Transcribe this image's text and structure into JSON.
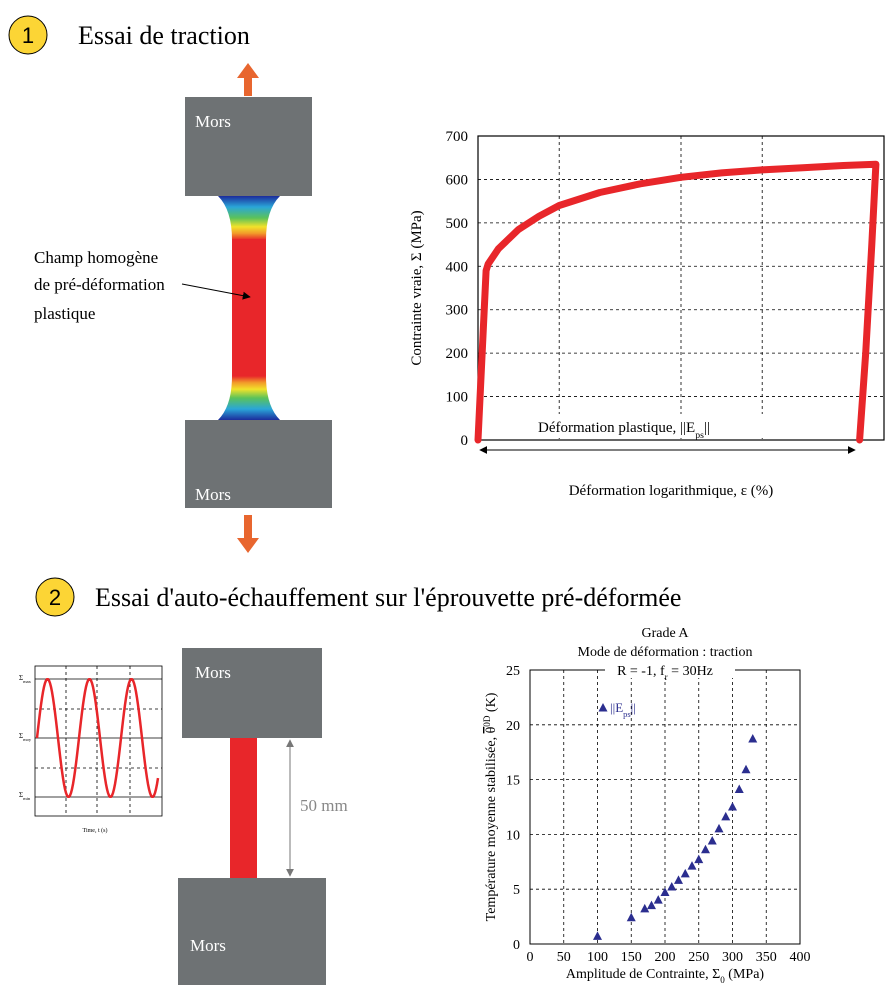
{
  "steps": [
    {
      "number": "1",
      "title": "Essai de traction"
    },
    {
      "number": "2",
      "title": "Essai d'auto-échauffement sur l'éprouvette pré-déformée"
    }
  ],
  "specimen_1": {
    "top_grip": "Mors",
    "bottom_grip": "Mors",
    "annotation": [
      "Champ homogène",
      "de pré-déformation",
      "plastique"
    ]
  },
  "specimen_2": {
    "top_grip": "Mors",
    "bottom_grip": "Mors",
    "gauge_length": "50 mm"
  },
  "signal_inset": {
    "levels": [
      [
        {
          "text": "Σ"
        },
        {
          "text": "max",
          "sub": true
        }
      ],
      [
        {
          "text": "Σ"
        },
        {
          "text": "moy",
          "sub": true
        }
      ],
      [
        {
          "text": "Σ"
        },
        {
          "text": "min",
          "sub": true
        }
      ]
    ],
    "x_label": "Time, t (s)"
  },
  "chart_data": [
    {
      "type": "line",
      "y_label": "Contrainte vraie, Σ (MPa)",
      "x_label": "Déformation logarithmique, ε  (%)",
      "annotation": [
        {
          "text": "Déformation plastique, ||E"
        },
        {
          "text": "ps",
          "sub": true
        },
        {
          "text": "||"
        }
      ],
      "xlim": [
        0,
        20
      ],
      "xgrid": [
        4,
        10,
        14
      ],
      "ylim": [
        0,
        700
      ],
      "yticks": [
        0,
        100,
        200,
        300,
        400,
        500,
        600,
        700
      ],
      "grid": true,
      "x": [
        0,
        0.4,
        0.5,
        1,
        2,
        3,
        4,
        6,
        8,
        10,
        12,
        14,
        16,
        18,
        19.6,
        19.4,
        19.1,
        18.8
      ],
      "series": [
        {
          "color": "#e8262a",
          "values": [
            0,
            390,
            405,
            440,
            485,
            515,
            540,
            570,
            590,
            605,
            615,
            622,
            627,
            632,
            635,
            450,
            200,
            0
          ]
        }
      ]
    },
    {
      "type": "scatter",
      "title": "Grade A",
      "subtitle": "Mode de déformation : traction",
      "conditions": [
        {
          "text": "R = -1, f"
        },
        {
          "text": "r",
          "sub": true
        },
        {
          "text": " = 30Hz"
        }
      ],
      "y_label": [
        {
          "text": "Température moyenne stabilisée, "
        },
        {
          "text": "θ",
          "over": true
        },
        {
          "text": "0D",
          "sup": true
        },
        {
          "text": " (K)"
        }
      ],
      "x_label": [
        {
          "text": "Amplitude de Contrainte, Σ"
        },
        {
          "text": "0",
          "sub": true
        },
        {
          "text": " (MPa)"
        }
      ],
      "xlim": [
        0,
        400
      ],
      "xticks": [
        0,
        50,
        100,
        150,
        200,
        250,
        300,
        350,
        400
      ],
      "ylim": [
        0,
        25
      ],
      "yticks": [
        0,
        5,
        10,
        15,
        20,
        25
      ],
      "grid": true,
      "x": [
        100,
        150,
        170,
        180,
        190,
        200,
        210,
        220,
        230,
        240,
        250,
        260,
        270,
        280,
        290,
        300,
        310,
        320,
        330
      ],
      "series": [
        {
          "legend": [
            {
              "text": "||E"
            },
            {
              "text": "ps",
              "sub": true
            },
            {
              "text": "||"
            }
          ],
          "color": "#2b2e8f",
          "values": [
            0.7,
            2.4,
            3.2,
            3.5,
            4.0,
            4.7,
            5.2,
            5.8,
            6.4,
            7.1,
            7.7,
            8.6,
            9.4,
            10.5,
            11.6,
            12.5,
            14.1,
            15.9,
            18.7
          ]
        }
      ]
    }
  ]
}
